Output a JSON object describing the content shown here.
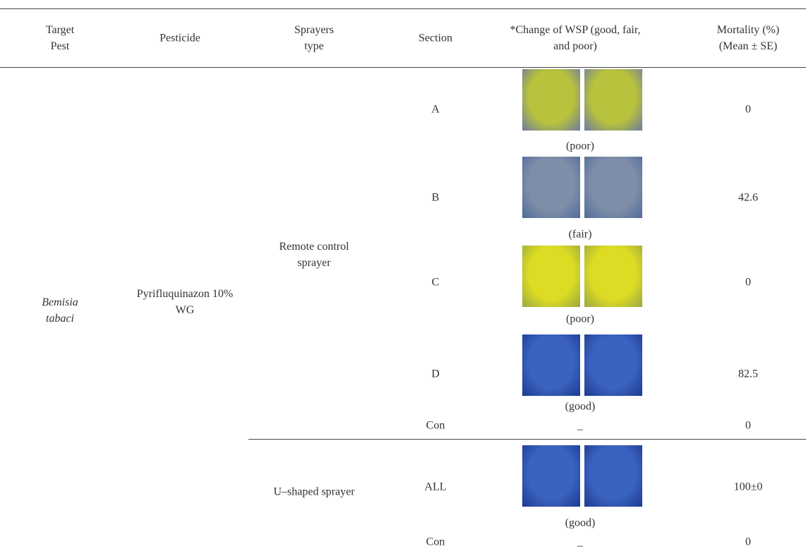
{
  "table": {
    "header": [
      "Target Pest",
      "Pesticide",
      "Sprayers type",
      "Section",
      "*Change of WSP (good, fair, and poor)",
      "Mortality (%) (Mean ± SE)"
    ],
    "target_pest": "Bemisia tabaci",
    "pesticide": "Pyrifluquinazon 10% WG",
    "groups": [
      {
        "sprayer": "Remote control sprayer",
        "rows": [
          {
            "section": "A",
            "wsp": "(poor)",
            "mortality": 0
          },
          {
            "section": "B",
            "wsp": "(fair)",
            "mortality": 42.6
          },
          {
            "section": "C",
            "wsp": "(poor)",
            "mortality": 0
          },
          {
            "section": "D",
            "wsp": "(good)",
            "mortality": 82.5
          },
          {
            "section": "Con",
            "wsp": "_",
            "mortality": 0
          }
        ]
      },
      {
        "sprayer": "U–shaped sprayer",
        "rows": [
          {
            "section": "ALL",
            "wsp": "(good)",
            "mortality": "100±0"
          },
          {
            "section": "Con",
            "wsp": "_",
            "mortality": 0
          }
        ]
      }
    ]
  }
}
